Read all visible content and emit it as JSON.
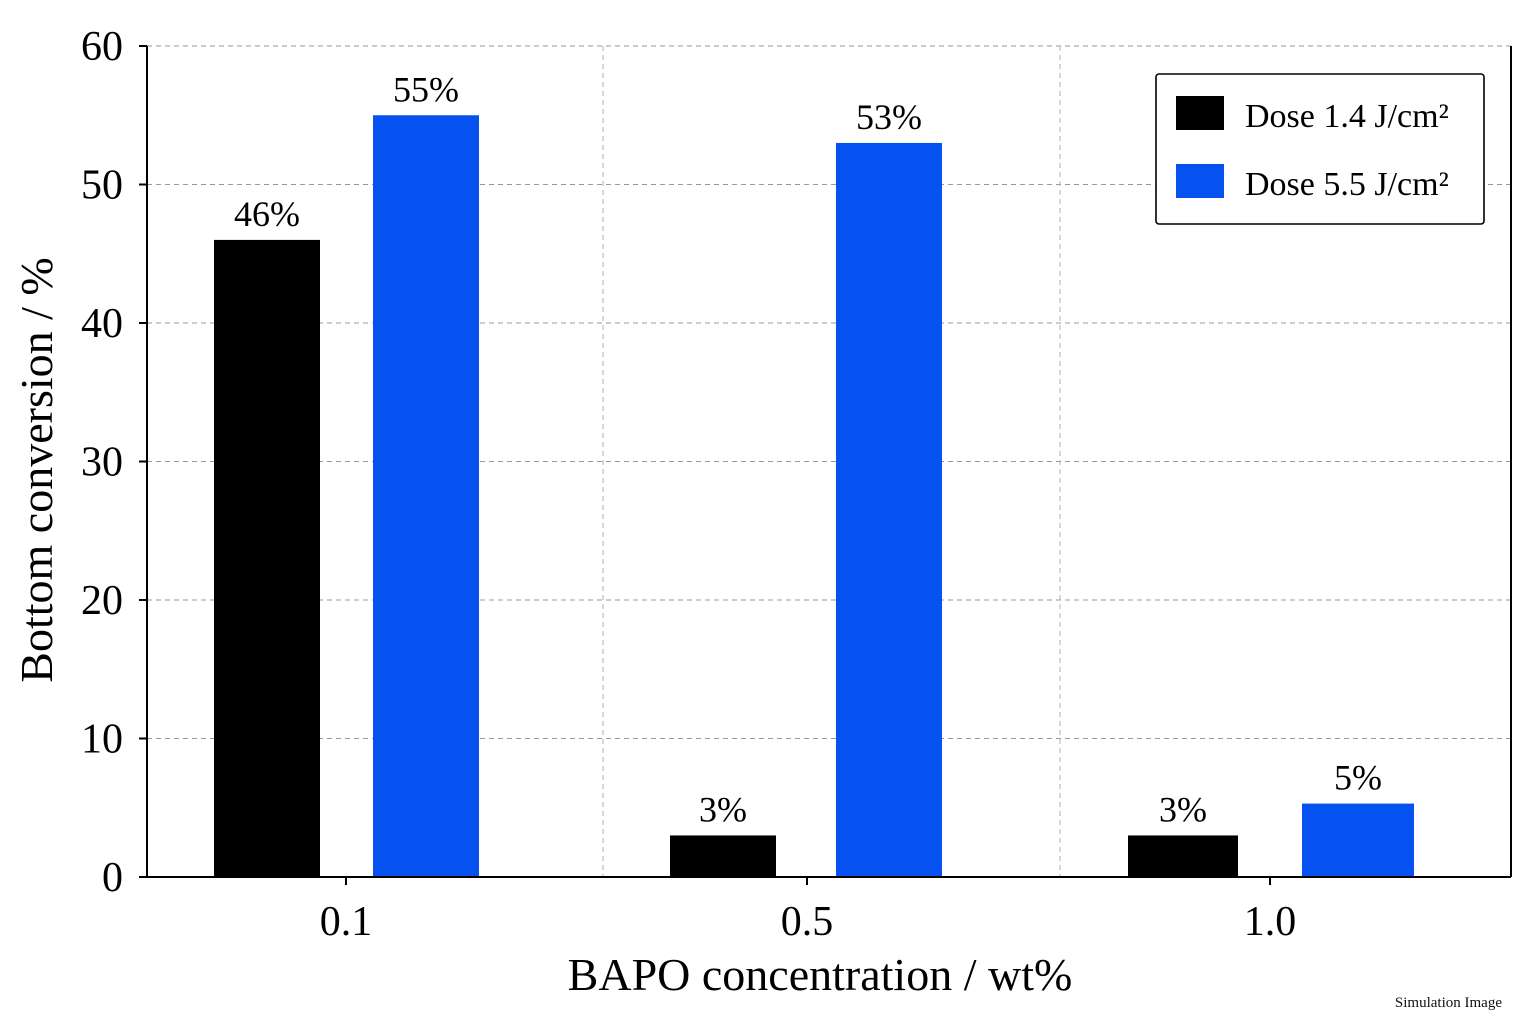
{
  "chart_data": {
    "type": "bar",
    "categories": [
      "0.1",
      "0.5",
      "1.0"
    ],
    "series": [
      {
        "name": "Dose 1.4 J/cm²",
        "values": [
          46,
          3,
          3
        ],
        "labels": [
          "46%",
          "3%",
          "3%"
        ],
        "color": "#000000"
      },
      {
        "name": "Dose 5.5 J/cm²",
        "values": [
          55,
          53,
          5.3
        ],
        "labels": [
          "55%",
          "53%",
          "5%"
        ],
        "color": "#0552f0"
      }
    ],
    "xlabel": "BAPO concentration / wt%",
    "ylabel": "Bottom conversion / %",
    "ylim": [
      0,
      60
    ],
    "yticks": [
      "0",
      "10",
      "20",
      "30",
      "40",
      "50",
      "60"
    ],
    "grid": true,
    "legend_position": "top-right"
  },
  "watermark": "Simulation Image"
}
